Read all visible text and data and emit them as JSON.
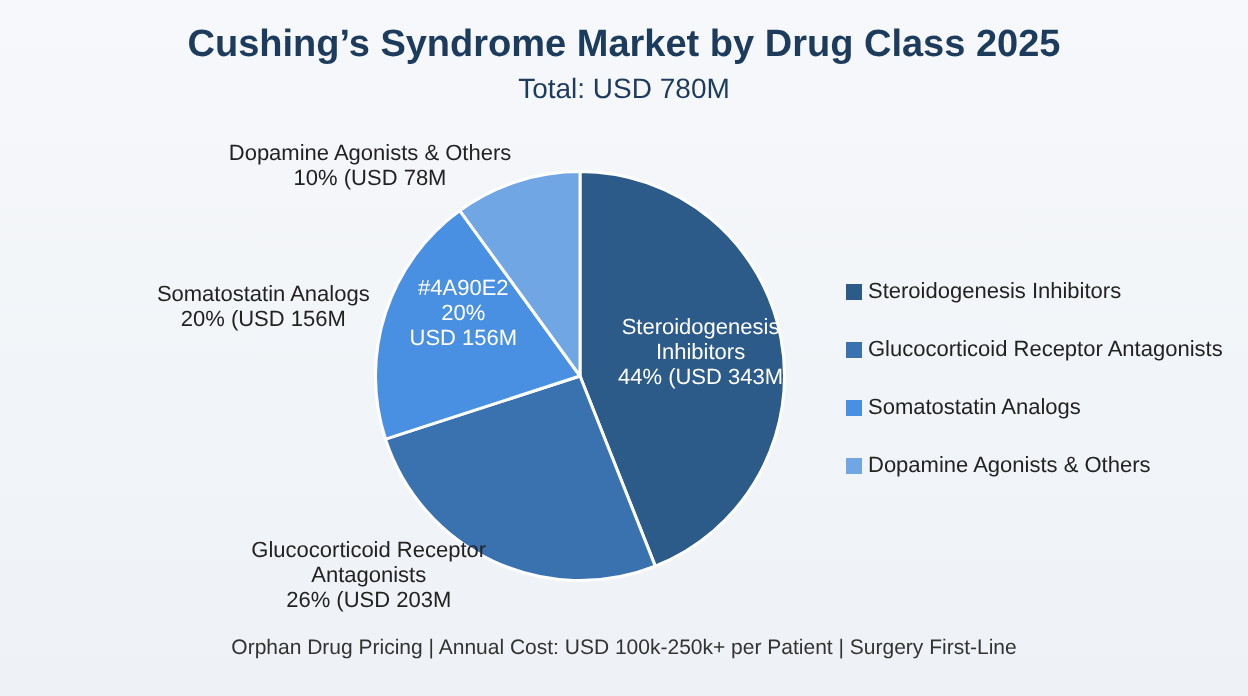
{
  "chart_data": {
    "type": "pie",
    "title": "Cushing’s Syndrome Market by Drug Class 2025",
    "subtitle": "Total: USD 780M",
    "categories": [
      "Steroidogenesis Inhibitors",
      "Glucocorticoid Receptor Antagonists",
      "Somatostatin Analogs",
      "Dopamine Agonists & Others"
    ],
    "values": [
      44,
      26,
      20,
      10
    ],
    "colors": [
      "#2c5b8a",
      "#3a72b0",
      "#4a90e2",
      "#6fa6e3"
    ],
    "value_labels": [
      "Steroidogenesis\nInhibitors\n44% (USD 343M",
      "Glucocorticoid Receptor\nAntagonists\n26% (USD 203M",
      "Somatostatin Analogs\n20% (USD 156M",
      "Dopamine Agonists & Others\n10% (USD 78M"
    ],
    "annotations": [
      {
        "text": "#4A90E2\n20%\nUSD 156M",
        "x": "Somatostatin Analogs"
      },
      "Orphan Drug Pricing | Annual Cost: USD 100k-250k+ per Patient | Surgery First-Line"
    ],
    "legend": "right"
  }
}
